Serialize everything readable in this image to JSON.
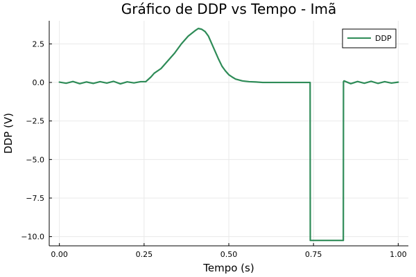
{
  "chart_data": {
    "type": "line",
    "title": "Gráfico de DDP vs Tempo - Imã",
    "xlabel": "Tempo (s)",
    "ylabel": "DDP (V)",
    "xlim": [
      -0.03,
      1.03
    ],
    "ylim": [
      -10.6,
      4.0
    ],
    "x_ticks": [
      0.0,
      0.25,
      0.5,
      0.75,
      1.0
    ],
    "x_tick_labels": [
      "0.00",
      "0.25",
      "0.50",
      "0.75",
      "1.00"
    ],
    "y_ticks": [
      2.5,
      0.0,
      -2.5,
      -5.0,
      -7.5,
      -10.0
    ],
    "y_tick_labels": [
      "2.5",
      "0.0",
      "−2.5",
      "−5.0",
      "−7.5",
      "−10.0"
    ],
    "grid": true,
    "legend": {
      "position": "top-right",
      "entries": [
        "DDP"
      ]
    },
    "series": [
      {
        "name": "DDP",
        "color": "#2e8b57",
        "x": [
          0.0,
          0.02,
          0.04,
          0.06,
          0.08,
          0.1,
          0.12,
          0.14,
          0.16,
          0.18,
          0.2,
          0.22,
          0.24,
          0.255,
          0.27,
          0.28,
          0.3,
          0.32,
          0.34,
          0.36,
          0.38,
          0.4,
          0.41,
          0.42,
          0.43,
          0.44,
          0.45,
          0.46,
          0.47,
          0.48,
          0.49,
          0.5,
          0.51,
          0.52,
          0.54,
          0.56,
          0.58,
          0.6,
          0.62,
          0.64,
          0.66,
          0.68,
          0.7,
          0.72,
          0.74,
          0.7405,
          0.744,
          0.8,
          0.838,
          0.8385,
          0.84,
          0.86,
          0.88,
          0.9,
          0.92,
          0.94,
          0.96,
          0.98,
          1.0
        ],
        "y": [
          0.02,
          -0.05,
          0.06,
          -0.08,
          0.03,
          -0.06,
          0.05,
          -0.04,
          0.07,
          -0.09,
          0.04,
          -0.03,
          0.05,
          0.05,
          0.35,
          0.6,
          0.9,
          1.4,
          1.9,
          2.5,
          3.0,
          3.35,
          3.5,
          3.45,
          3.3,
          3.0,
          2.5,
          2.0,
          1.5,
          1.05,
          0.75,
          0.5,
          0.35,
          0.22,
          0.1,
          0.05,
          0.03,
          0.0,
          0.0,
          0.0,
          0.0,
          0.0,
          0.0,
          0.0,
          0.0,
          -10.25,
          -10.25,
          -10.25,
          -10.25,
          0.05,
          0.1,
          -0.08,
          0.06,
          -0.05,
          0.07,
          -0.06,
          0.05,
          -0.04,
          0.02
        ]
      }
    ]
  }
}
